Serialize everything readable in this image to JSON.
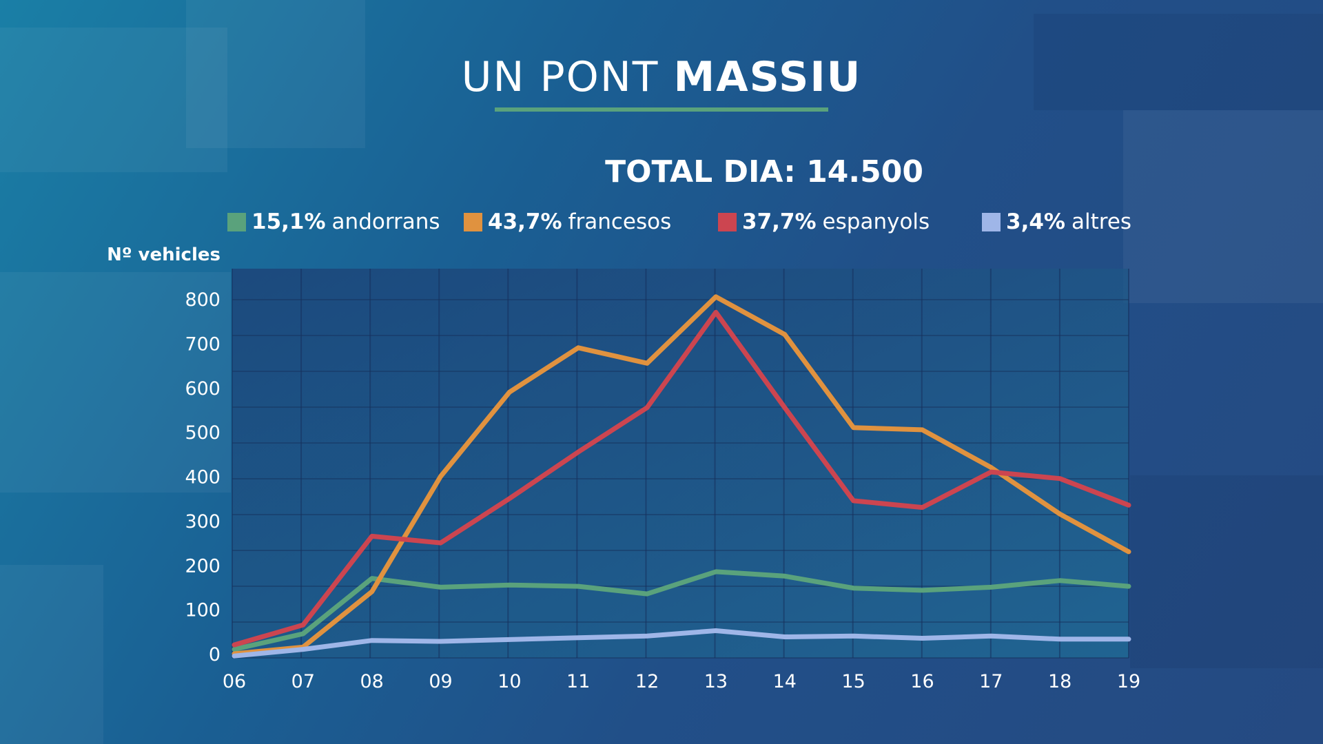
{
  "title": {
    "thin": "UN PONT",
    "bold": "MASSIU"
  },
  "total_label": "TOTAL DIA: 14.500",
  "legend": [
    {
      "pct": "15,1%",
      "name": "andorrans",
      "color": "#5aa27c"
    },
    {
      "pct": "43,7%",
      "name": "francesos",
      "color": "#e0923f"
    },
    {
      "pct": "37,7%",
      "name": "espanyols",
      "color": "#cc4550"
    },
    {
      "pct": "3,4%",
      "name": "altres",
      "color": "#9fb6e8"
    }
  ],
  "chart_data": {
    "type": "line",
    "title": "UN PONT MASSIU",
    "subtitle": "TOTAL DIA: 14.500",
    "xlabel": "",
    "ylabel": "Nº vehicles",
    "x": [
      "06",
      "07",
      "08",
      "09",
      "10",
      "11",
      "12",
      "13",
      "14",
      "15",
      "16",
      "17",
      "18",
      "19"
    ],
    "ylim": [
      0,
      850
    ],
    "yticks": [
      0,
      100,
      200,
      300,
      400,
      500,
      600,
      700,
      800
    ],
    "grid": true,
    "legend_position": "top",
    "series": [
      {
        "name": "andorrans",
        "color": "#5aa27c",
        "values": [
          10,
          45,
          170,
          150,
          155,
          152,
          135,
          185,
          175,
          148,
          143,
          150,
          165,
          152
        ]
      },
      {
        "name": "francesos",
        "color": "#e0923f",
        "values": [
          0,
          15,
          140,
          400,
          590,
          690,
          655,
          805,
          720,
          510,
          505,
          420,
          315,
          230
        ]
      },
      {
        "name": "espanyols",
        "color": "#cc4550",
        "values": [
          20,
          65,
          265,
          250,
          350,
          455,
          555,
          770,
          555,
          345,
          330,
          410,
          395,
          335
        ]
      },
      {
        "name": "altres",
        "color": "#9fb6e8",
        "values": [
          -5,
          10,
          30,
          28,
          32,
          36,
          40,
          52,
          38,
          40,
          35,
          40,
          33,
          33
        ]
      }
    ]
  }
}
